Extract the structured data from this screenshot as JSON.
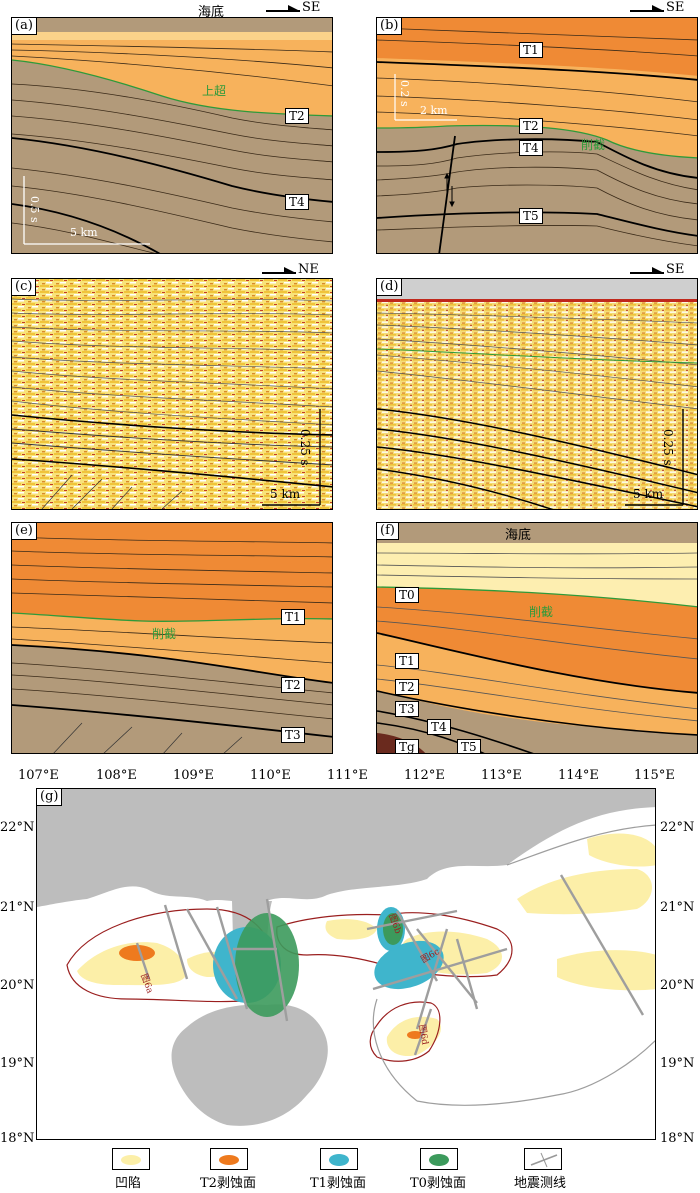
{
  "panels": {
    "a": {
      "label": "(a)",
      "header": "海底",
      "direction": "SE",
      "horizons": [
        "T2",
        "T4"
      ],
      "annotation": "上超",
      "scale_v": "0.5 s",
      "scale_h": "5 km"
    },
    "b": {
      "label": "(b)",
      "direction": "SE",
      "horizons": [
        "T1",
        "T2",
        "T4",
        "T5"
      ],
      "annotation": "削截",
      "scale_v": "0.2 s",
      "scale_h": "2 km"
    },
    "c": {
      "label": "(c)",
      "direction": "NE",
      "scale_v": "0.25 s",
      "scale_h": "5 km"
    },
    "d": {
      "label": "(d)",
      "direction": "SE",
      "scale_v": "0.25 s",
      "scale_h": "5 km"
    },
    "e": {
      "label": "(e)",
      "horizons": [
        "T1",
        "T2",
        "T3"
      ],
      "annotation": "削截"
    },
    "f": {
      "label": "(f)",
      "header": "海底",
      "horizons": [
        "T0",
        "T1",
        "T2",
        "T3",
        "T4",
        "T5",
        "Tg"
      ],
      "annotation": "削截"
    }
  },
  "map": {
    "label": "(g)",
    "lon_labels": [
      "107°E",
      "108°E",
      "109°E",
      "110°E",
      "111°E",
      "112°E",
      "113°E",
      "114°E",
      "115°E"
    ],
    "lat_labels": [
      "22°N",
      "21°N",
      "20°N",
      "19°N",
      "18°N"
    ],
    "profile_labels": [
      "图6a",
      "图6b",
      "图6c",
      "图6d"
    ]
  },
  "legend": [
    {
      "label": "凹陷",
      "color": "#fcefa8"
    },
    {
      "label": "T2剥蚀面",
      "color": "#ee7a1e"
    },
    {
      "label": "T1剥蚀面",
      "color": "#3fb5cc"
    },
    {
      "label": "T0剥蚀面",
      "color": "#3c9a5c"
    },
    {
      "label": "地震测线",
      "color": "#999999"
    }
  ]
}
